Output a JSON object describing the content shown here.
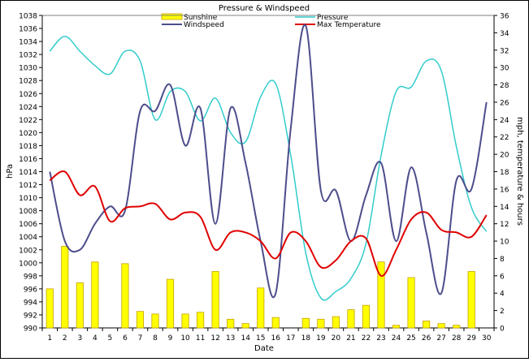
{
  "chart_data": {
    "type": "bar+line",
    "title": "Pressure & Windspeed",
    "xlabel": "Date",
    "ylabel_left": "hPa",
    "ylabel_right": "mph, temperature & hours",
    "x": [
      1,
      2,
      3,
      4,
      5,
      6,
      7,
      8,
      9,
      10,
      11,
      12,
      13,
      14,
      15,
      16,
      17,
      18,
      19,
      20,
      21,
      22,
      23,
      24,
      25,
      26,
      27,
      28,
      29,
      30
    ],
    "x_tick_labels": [
      "1",
      "2",
      "3",
      "4",
      "5",
      "6",
      "7",
      "8",
      "9",
      "10",
      "11",
      "12",
      "13",
      "14",
      "15",
      "16",
      "17",
      "18",
      "19",
      "20",
      "21",
      "22",
      "23",
      "24",
      "25",
      "26",
      "27",
      "28",
      "29",
      "30"
    ],
    "ylim_left": [
      990,
      1038
    ],
    "y_left_ticks": [
      "990",
      "992",
      "994",
      "996",
      "998",
      "1000",
      "1002",
      "1004",
      "1006",
      "1008",
      "1010",
      "1012",
      "1014",
      "1016",
      "1018",
      "1020",
      "1022",
      "1024",
      "1026",
      "1028",
      "1030",
      "1032",
      "1034",
      "1036",
      "1038"
    ],
    "ylim_right": [
      0,
      36
    ],
    "y_right_ticks": [
      "0",
      "2",
      "4",
      "6",
      "8",
      "10",
      "12",
      "14",
      "16",
      "18",
      "20",
      "22",
      "24",
      "26",
      "28",
      "30",
      "32",
      "34",
      "36"
    ],
    "legend_position": "top",
    "grid": false,
    "series": [
      {
        "name": "Sunshine",
        "chart_type": "bar",
        "axis": "right",
        "color": "#ffff00",
        "edge_color": "#c8a000",
        "values": [
          4.5,
          9.4,
          5.2,
          7.6,
          0,
          7.4,
          1.9,
          1.6,
          5.6,
          1.6,
          1.8,
          6.5,
          1.0,
          0.5,
          4.6,
          1.2,
          0,
          1.1,
          1.0,
          1.3,
          2.1,
          2.6,
          7.6,
          0.3,
          5.8,
          0.8,
          0.5,
          0.3,
          6.5,
          0
        ]
      },
      {
        "name": "Pressure",
        "chart_type": "line",
        "axis": "left",
        "color": "#33cccc",
        "values": [
          1032.5,
          1034.8,
          1032.5,
          1030.3,
          1029.0,
          1032.5,
          1031.0,
          1022.0,
          1026.3,
          1026.3,
          1021.8,
          1025.3,
          1020.0,
          1018.6,
          1025.5,
          1027.5,
          1016.5,
          1001.5,
          994.6,
          995.6,
          997.6,
          1003.0,
          1016.5,
          1026.3,
          1027.0,
          1031.0,
          1029.5,
          1017.8,
          1008.5,
          1004.8
        ]
      },
      {
        "name": "Windspeed",
        "chart_type": "line",
        "axis": "right",
        "color": "#4d4d8c",
        "values": [
          18.0,
          10.0,
          9.0,
          12.0,
          14.0,
          13.5,
          25.0,
          25.0,
          28.0,
          21.0,
          25.3,
          12.0,
          25.3,
          19.0,
          10.0,
          4.0,
          23.0,
          34.8,
          15.8,
          15.8,
          10.0,
          15.3,
          19.0,
          10.0,
          18.5,
          11.0,
          4.0,
          17.0,
          16.0,
          26.0
        ]
      },
      {
        "name": "Max Temperature",
        "chart_type": "line",
        "axis": "right",
        "color": "#e00000",
        "values": [
          17.0,
          18.0,
          15.3,
          16.3,
          12.3,
          13.8,
          14.0,
          14.3,
          12.5,
          13.3,
          12.8,
          9.0,
          11.0,
          11.0,
          10.0,
          8.0,
          11.0,
          10.0,
          7.0,
          7.8,
          10.0,
          10.3,
          6.0,
          9.0,
          12.5,
          13.3,
          11.3,
          11.0,
          10.5,
          13.0
        ]
      }
    ]
  }
}
